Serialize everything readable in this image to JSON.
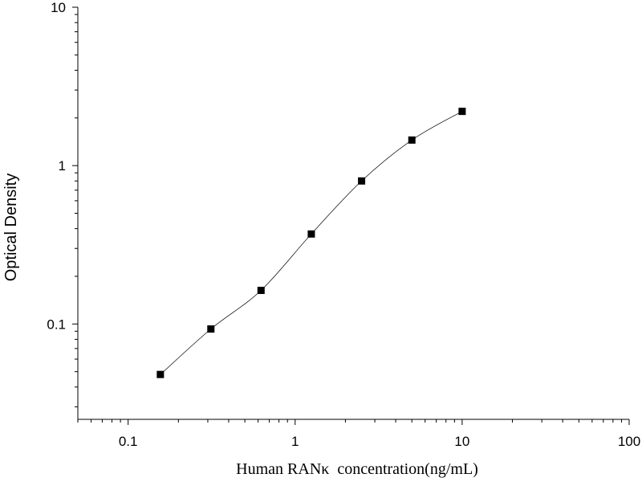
{
  "chart_data": {
    "type": "scatter",
    "title": "",
    "xlabel": "Human RANκ  concentration(ng/mL)",
    "ylabel": "Optical Density",
    "x_scale": "log",
    "y_scale": "log",
    "xlim": [
      0.05,
      100
    ],
    "ylim": [
      0.025,
      10
    ],
    "x_ticks": [
      {
        "value": 0.1,
        "label": "0.1"
      },
      {
        "value": 1,
        "label": "1"
      },
      {
        "value": 10,
        "label": "10"
      },
      {
        "value": 100,
        "label": "100"
      }
    ],
    "y_ticks": [
      {
        "value": 0.1,
        "label": "0.1"
      },
      {
        "value": 1,
        "label": "1"
      },
      {
        "value": 10,
        "label": "10"
      }
    ],
    "grid": false,
    "legend": "none",
    "series": [
      {
        "x": [
          0.156,
          0.313,
          0.625,
          1.25,
          2.5,
          5,
          10
        ],
        "y": [
          0.048,
          0.093,
          0.163,
          0.37,
          0.8,
          1.45,
          2.2
        ],
        "marker": "square",
        "fit_curve": true
      }
    ],
    "colors": {
      "marker": "#000000",
      "curve": "#000000",
      "axis": "#000000"
    }
  }
}
